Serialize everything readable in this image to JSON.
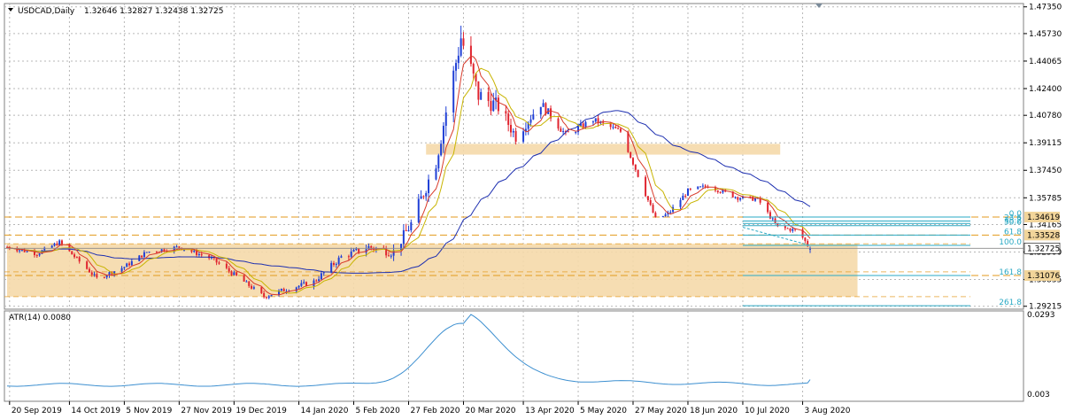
{
  "header": {
    "symbol": "USDCAD,Daily",
    "ohlc": "1.32646 1.32827 1.32438 1.32725"
  },
  "atr": {
    "label": "ATR(14) 0.0080",
    "ticks": [
      "0.0293",
      "0.003"
    ]
  },
  "price_axis": {
    "ticks": [
      "1.47350",
      "1.45730",
      "1.44065",
      "1.42400",
      "1.40780",
      "1.39115",
      "1.37450",
      "1.35785",
      "1.34165",
      "1.32500",
      "1.30835",
      "1.29215"
    ],
    "current_price": "1.32725"
  },
  "fib": {
    "labels": [
      "0.0",
      "23.6",
      "38.2",
      "50.0",
      "61.8",
      "100.0",
      "161.8",
      "261.8"
    ],
    "price_tags": [
      "1.34619",
      "1.33528",
      "1.31076"
    ]
  },
  "time_axis": {
    "ticks": [
      "20 Sep 2019",
      "14 Oct 2019",
      "5 Nov 2019",
      "27 Nov 2019",
      "19 Dec 2019",
      "14 Jan 2020",
      "5 Feb 2020",
      "27 Feb 2020",
      "20 Mar 2020",
      "13 Apr 2020",
      "5 May 2020",
      "27 May 2020",
      "18 Jun 2020",
      "10 Jul 2020",
      "3 Aug 2020"
    ]
  },
  "colors": {
    "bull": "#1f3fd6",
    "bear": "#e0242f",
    "ma_fast": "#d83a2a",
    "ma_mid": "#c8b400",
    "ma_slow": "#1d2fb0",
    "zone": "#f5d9aa",
    "fib": "#2aa9c4",
    "atr": "#3c8fd0",
    "grid": "#b7b7b7",
    "level": "#e39a1d"
  },
  "chart_data": {
    "type": "candlestick",
    "symbol": "USDCAD",
    "timeframe": "Daily",
    "last_ohlc": {
      "open": 1.32646,
      "high": 1.32827,
      "low": 1.32438,
      "close": 1.32725
    },
    "y_range": [
      1.2904,
      1.4755
    ],
    "date_range": [
      "2019-09-19",
      "2020-08-06"
    ],
    "anchors": [
      {
        "date": "2019-09-19",
        "price": 1.328
      },
      {
        "date": "2019-10-01",
        "price": 1.324
      },
      {
        "date": "2019-10-10",
        "price": 1.331
      },
      {
        "date": "2019-10-25",
        "price": 1.309
      },
      {
        "date": "2019-11-05",
        "price": 1.316
      },
      {
        "date": "2019-11-14",
        "price": 1.325
      },
      {
        "date": "2019-11-27",
        "price": 1.328
      },
      {
        "date": "2019-12-10",
        "price": 1.321
      },
      {
        "date": "2019-12-23",
        "price": 1.307
      },
      {
        "date": "2019-12-31",
        "price": 1.298
      },
      {
        "date": "2020-01-08",
        "price": 1.302
      },
      {
        "date": "2020-01-20",
        "price": 1.307
      },
      {
        "date": "2020-01-31",
        "price": 1.322
      },
      {
        "date": "2020-02-11",
        "price": 1.328
      },
      {
        "date": "2020-02-21",
        "price": 1.325
      },
      {
        "date": "2020-02-28",
        "price": 1.342
      },
      {
        "date": "2020-03-09",
        "price": 1.38
      },
      {
        "date": "2020-03-19",
        "price": 1.455
      },
      {
        "date": "2020-03-26",
        "price": 1.42
      },
      {
        "date": "2020-04-03",
        "price": 1.413
      },
      {
        "date": "2020-04-10",
        "price": 1.395
      },
      {
        "date": "2020-04-20",
        "price": 1.415
      },
      {
        "date": "2020-04-30",
        "price": 1.396
      },
      {
        "date": "2020-05-11",
        "price": 1.405
      },
      {
        "date": "2020-05-22",
        "price": 1.398
      },
      {
        "date": "2020-06-05",
        "price": 1.345
      },
      {
        "date": "2020-06-10",
        "price": 1.348
      },
      {
        "date": "2020-06-18",
        "price": 1.362
      },
      {
        "date": "2020-06-26",
        "price": 1.365
      },
      {
        "date": "2020-07-08",
        "price": 1.358
      },
      {
        "date": "2020-07-16",
        "price": 1.357
      },
      {
        "date": "2020-07-24",
        "price": 1.34
      },
      {
        "date": "2020-08-01",
        "price": 1.338
      },
      {
        "date": "2020-08-06",
        "price": 1.3272
      }
    ],
    "atr_range": [
      0.003,
      0.0293
    ],
    "atr_current": 0.008,
    "zones": [
      {
        "from": 1.384,
        "to": 1.3905,
        "start": "2020-03-05",
        "end": "2020-07-25"
      },
      {
        "from": 1.298,
        "to": 1.33,
        "start": "2019-09-19",
        "end": "2020-08-25"
      }
    ],
    "horizontal_levels": [
      1.3462,
      1.3353,
      1.3108
    ],
    "fibonacci": {
      "start": "2020-07-10",
      "end": "2020-08-25",
      "levels": [
        {
          "label": "0.0",
          "price": 1.3462
        },
        {
          "label": "23.6",
          "price": 1.3438
        },
        {
          "label": "38.2",
          "price": 1.3423
        },
        {
          "label": "50.0",
          "price": 1.341
        },
        {
          "label": "61.8",
          "price": 1.3353
        },
        {
          "label": "100.0",
          "price": 1.329
        },
        {
          "label": "161.8",
          "price": 1.3108
        },
        {
          "label": "261.8",
          "price": 1.2925
        }
      ]
    }
  }
}
